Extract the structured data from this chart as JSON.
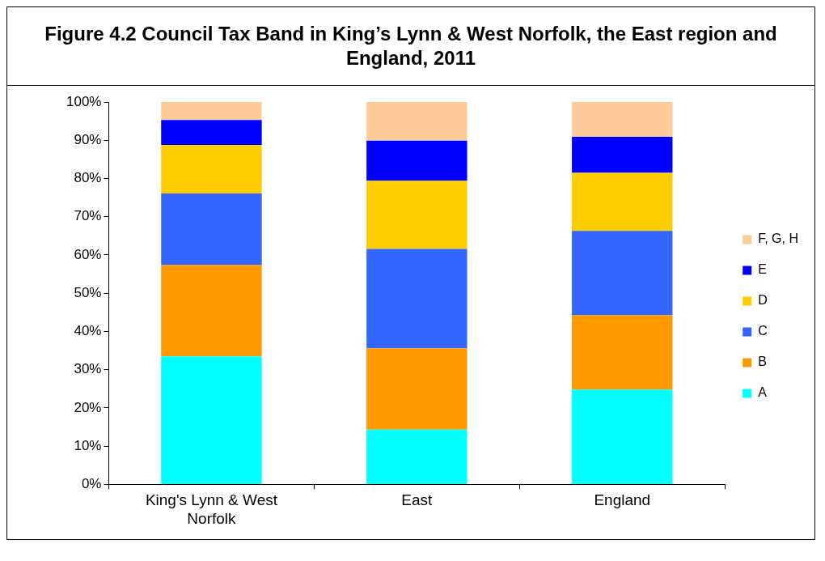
{
  "chart_data": {
    "type": "bar",
    "title": "Figure 4.2 Council Tax Band in King’s Lynn & West Norfolk, the East region and England, 2011",
    "categories": [
      "King's Lynn & West Norfolk",
      "East",
      "England"
    ],
    "stacked": true,
    "ylim": [
      0,
      100
    ],
    "yticks": [
      {
        "value": 0,
        "label": "0%"
      },
      {
        "value": 10,
        "label": "10%"
      },
      {
        "value": 20,
        "label": "20%"
      },
      {
        "value": 30,
        "label": "30%"
      },
      {
        "value": 40,
        "label": "40%"
      },
      {
        "value": 50,
        "label": "50%"
      },
      {
        "value": 60,
        "label": "60%"
      },
      {
        "value": 70,
        "label": "70%"
      },
      {
        "value": 80,
        "label": "80%"
      },
      {
        "value": 90,
        "label": "90%"
      },
      {
        "value": 100,
        "label": "100%"
      }
    ],
    "grid": false,
    "legend": "right",
    "series": [
      {
        "name": "A",
        "color": "#00ffff",
        "values": [
          33.5,
          14.3,
          24.8
        ]
      },
      {
        "name": "B",
        "color": "#ff9900",
        "values": [
          23.9,
          21.3,
          19.5
        ]
      },
      {
        "name": "C",
        "color": "#3366ff",
        "values": [
          18.7,
          26.0,
          22.0
        ]
      },
      {
        "name": "D",
        "color": "#ffcc00",
        "values": [
          12.7,
          17.8,
          15.2
        ]
      },
      {
        "name": "E",
        "color": "#0000ff",
        "values": [
          6.5,
          10.5,
          9.4
        ]
      },
      {
        "name": "F, G, H",
        "color": "#ffcc99",
        "values": [
          4.7,
          10.1,
          9.1
        ]
      }
    ]
  }
}
